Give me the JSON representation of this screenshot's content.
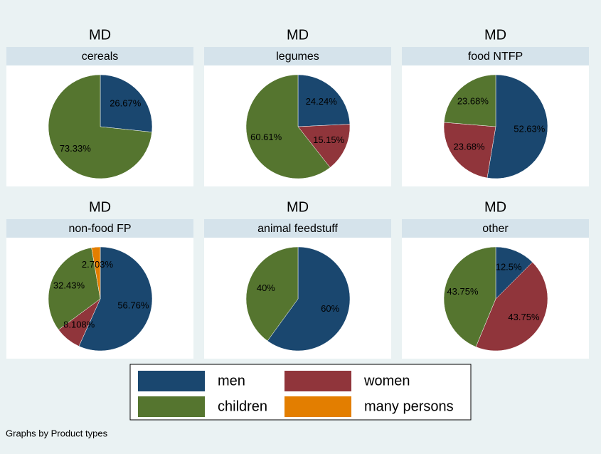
{
  "chart_data": [
    {
      "type": "pie",
      "title": "MD",
      "subtitle": "cereals",
      "categories": [
        "men",
        "children"
      ],
      "values": [
        26.67,
        73.33
      ],
      "value_labels": [
        "26.67%",
        "73.33%"
      ]
    },
    {
      "type": "pie",
      "title": "MD",
      "subtitle": "legumes",
      "categories": [
        "men",
        "women",
        "children"
      ],
      "values": [
        24.24,
        15.15,
        60.61
      ],
      "value_labels": [
        "24.24%",
        "15.15%",
        "60.61%"
      ]
    },
    {
      "type": "pie",
      "title": "MD",
      "subtitle": "food NTFP",
      "categories": [
        "men",
        "women",
        "children"
      ],
      "values": [
        52.63,
        23.68,
        23.68
      ],
      "value_labels": [
        "52.63%",
        "23.68%",
        "23.68%"
      ]
    },
    {
      "type": "pie",
      "title": "MD",
      "subtitle": "non-food FP",
      "categories": [
        "men",
        "women",
        "children",
        "many persons"
      ],
      "values": [
        56.76,
        8.108,
        32.43,
        2.703
      ],
      "value_labels": [
        "56.76%",
        "8.108%",
        "32.43%",
        "2.703%"
      ]
    },
    {
      "type": "pie",
      "title": "MD",
      "subtitle": "animal feedstuff",
      "categories": [
        "men",
        "children"
      ],
      "values": [
        60,
        40
      ],
      "value_labels": [
        "60%",
        "40%"
      ]
    },
    {
      "type": "pie",
      "title": "MD",
      "subtitle": "other",
      "categories": [
        "men",
        "women",
        "children"
      ],
      "values": [
        12.5,
        43.75,
        43.75
      ],
      "value_labels": [
        "12.5%",
        "43.75%",
        "43.75%"
      ]
    }
  ],
  "legend": {
    "items": [
      {
        "name": "men",
        "color": "#1a476f"
      },
      {
        "name": "women",
        "color": "#90353b"
      },
      {
        "name": "children",
        "color": "#55752f"
      },
      {
        "name": "many persons",
        "color": "#e37e00"
      }
    ]
  },
  "note": "Graphs by Product types"
}
